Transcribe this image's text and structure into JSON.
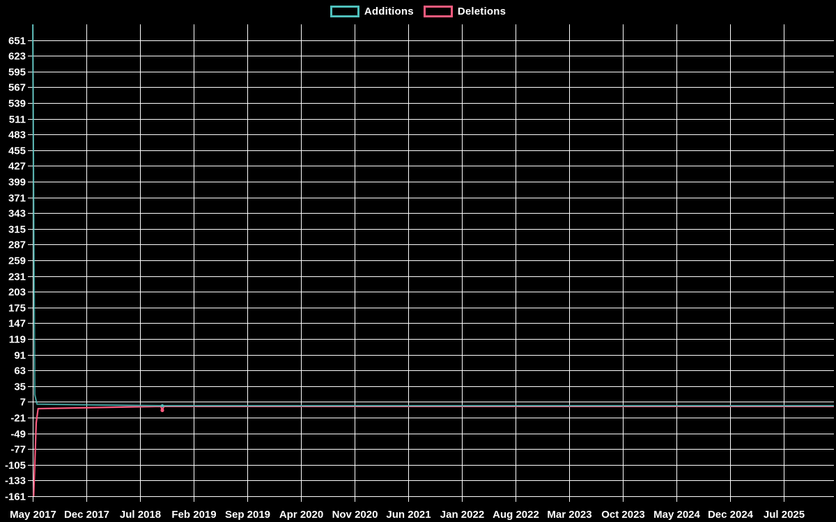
{
  "legend": {
    "items": [
      {
        "label": "Additions",
        "color": "#4FC0BC"
      },
      {
        "label": "Deletions",
        "color": "#F95A7D"
      }
    ]
  },
  "chart_data": {
    "type": "line",
    "title": "",
    "xlabel": "",
    "ylabel": "",
    "background_color": "#000000",
    "grid": true,
    "grid_color": "#ffffff",
    "text_color": "#ffffff",
    "legend_position": "top",
    "x_tick_labels": [
      "May 2017",
      "Dec 2017",
      "Jul 2018",
      "Feb 2019",
      "Sep 2019",
      "Apr 2020",
      "Nov 2020",
      "Jun 2021",
      "Jan 2022",
      "Aug 2022",
      "Mar 2023",
      "Oct 2023",
      "May 2024",
      "Dec 2024",
      "Jul 2025"
    ],
    "x_tick_interval_months": 7,
    "xlim_months": [
      0,
      104.5
    ],
    "y_ticks": [
      651,
      623,
      595,
      567,
      539,
      511,
      483,
      455,
      427,
      399,
      371,
      343,
      315,
      287,
      259,
      231,
      203,
      175,
      147,
      119,
      91,
      63,
      35,
      7,
      -21,
      -49,
      -77,
      -105,
      -133,
      -161
    ],
    "ylim": [
      -161,
      679
    ],
    "series": [
      {
        "name": "Additions",
        "color": "#4FC0BC",
        "points": [
          [
            0,
            679
          ],
          [
            0.25,
            20
          ],
          [
            0.55,
            3
          ],
          [
            16.7,
            0
          ],
          [
            16.9,
            0
          ],
          [
            17.1,
            0
          ],
          [
            104.5,
            0
          ]
        ]
      },
      {
        "name": "Deletions",
        "color": "#F95A7D",
        "points": [
          [
            0.12,
            -161
          ],
          [
            0.45,
            -30
          ],
          [
            0.7,
            -5
          ],
          [
            16.7,
            -1
          ],
          [
            16.9,
            -8
          ],
          [
            17.1,
            -1
          ],
          [
            104.5,
            -1
          ]
        ]
      }
    ],
    "markers": [
      {
        "series": "Additions",
        "x": 16.9,
        "y": 0,
        "r": 2.2
      },
      {
        "series": "Deletions",
        "x": 16.9,
        "y": -8,
        "r": 2.6
      }
    ]
  }
}
